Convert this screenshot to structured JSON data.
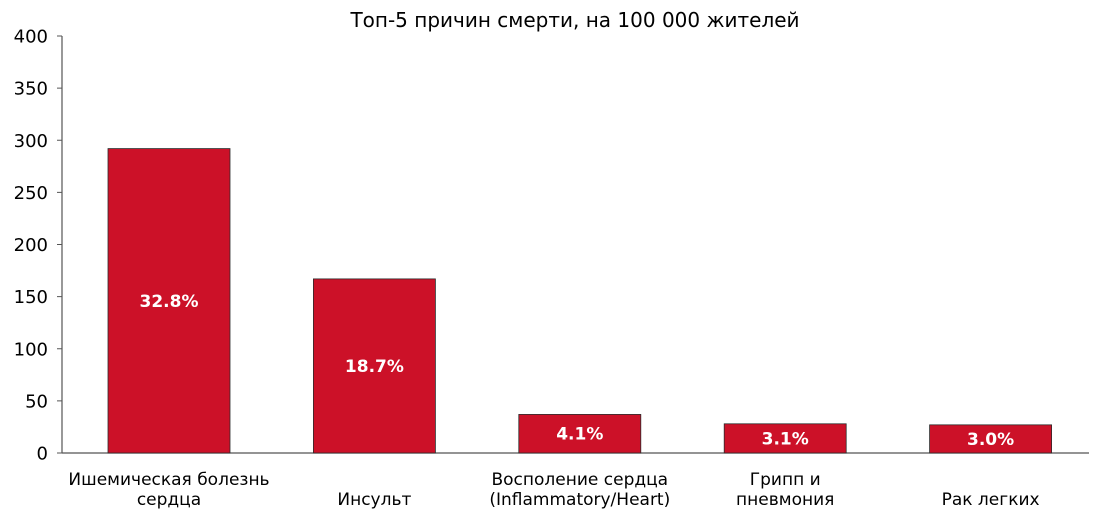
{
  "chart_data": {
    "type": "bar",
    "title": "Топ-5 причин смерти, на 100 000 жителей",
    "xlabel": "",
    "ylabel": "",
    "ylim": [
      0,
      400
    ],
    "yticks": [
      0,
      50,
      100,
      150,
      200,
      250,
      300,
      350,
      400
    ],
    "grid": false,
    "bar_color": "#CC1128",
    "categories": [
      [
        "Ишемическая болезнь",
        "сердца"
      ],
      [
        "Инсульт"
      ],
      [
        "Восполение сердца",
        "(Inflammatory/Heart)"
      ],
      [
        "Грипп и",
        "пневмония"
      ],
      [
        "Рак легких"
      ]
    ],
    "values": [
      292,
      167,
      37,
      28,
      27
    ],
    "data_labels": [
      "32.8%",
      "18.7%",
      "4.1%",
      "3.1%",
      "3.0%"
    ]
  }
}
